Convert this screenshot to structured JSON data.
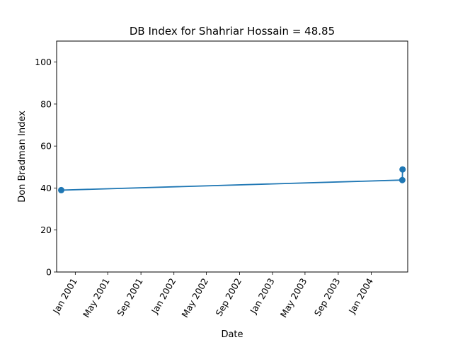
{
  "chart_data": {
    "type": "line",
    "title": "DB Index for Shahriar Hossain = 48.85",
    "xlabel": "Date",
    "ylabel": "Don Bradman Index",
    "ylim": [
      0,
      110
    ],
    "yticks": [
      0,
      20,
      40,
      60,
      80,
      100
    ],
    "xlim": [
      "2000-10-24",
      "2004-05-15"
    ],
    "xticks": [
      {
        "date": "2001-01-01",
        "label": "Jan 2001"
      },
      {
        "date": "2001-05-01",
        "label": "May 2001"
      },
      {
        "date": "2001-09-01",
        "label": "Sep 2001"
      },
      {
        "date": "2002-01-01",
        "label": "Jan 2002"
      },
      {
        "date": "2002-05-01",
        "label": "May 2002"
      },
      {
        "date": "2002-09-01",
        "label": "Sep 2002"
      },
      {
        "date": "2003-01-01",
        "label": "Jan 2003"
      },
      {
        "date": "2003-05-01",
        "label": "May 2003"
      },
      {
        "date": "2003-09-01",
        "label": "Sep 2003"
      },
      {
        "date": "2004-01-01",
        "label": "Jan 2004"
      }
    ],
    "series": [
      {
        "color": "#1f77b4",
        "points": [
          {
            "x": "2000-11-10",
            "y": 39.0
          },
          {
            "x": "2004-04-25",
            "y": 43.8
          },
          {
            "x": "2004-04-26",
            "y": 48.85
          }
        ]
      }
    ],
    "grid": false,
    "legend": "none"
  }
}
